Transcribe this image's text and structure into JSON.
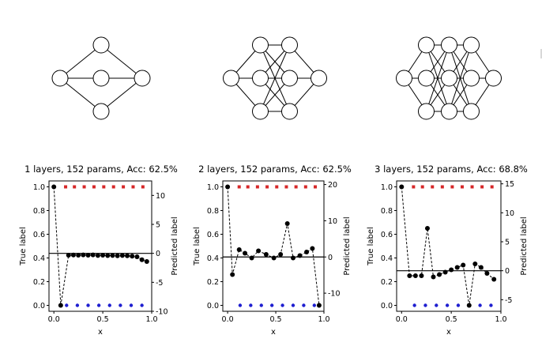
{
  "networks": [
    {
      "layers": [
        1,
        3,
        1
      ]
    },
    {
      "layers": [
        1,
        3,
        3,
        1
      ]
    },
    {
      "layers": [
        1,
        3,
        3,
        3,
        1
      ]
    }
  ],
  "chart_data": [
    {
      "type": "scatter",
      "title": "1 layers, 152 params, Acc: 62.5%",
      "xlabel": "x",
      "ylabel_left": "True label",
      "ylabel_right": "Predicted label",
      "xlim": [
        -0.05,
        1.0
      ],
      "ylim_left": [
        -0.05,
        1.05
      ],
      "ylim_right": [
        -10,
        12.5
      ],
      "xticks": [
        "0.0",
        "0.5",
        "1.0"
      ],
      "yticks_left": [
        "0.0",
        "0.2",
        "0.4",
        "0.6",
        "0.8",
        "1.0"
      ],
      "yticks_right": [
        "-10",
        "-5",
        "0",
        "5",
        "10"
      ],
      "grid": false,
      "series": [
        {
          "axis": "left",
          "style": "red-squares",
          "color": "#d62728",
          "x": [
            0.12,
            0.21,
            0.31,
            0.41,
            0.51,
            0.61,
            0.71,
            0.81,
            0.91
          ],
          "y": [
            1,
            1,
            1,
            1,
            1,
            1,
            1,
            1,
            1
          ]
        },
        {
          "axis": "left",
          "style": "blue-dots",
          "color": "#1f1fd0",
          "x": [
            0.13,
            0.24,
            0.35,
            0.46,
            0.57,
            0.68,
            0.79,
            0.9
          ],
          "y": [
            0,
            0,
            0,
            0,
            0,
            0,
            0,
            0
          ]
        },
        {
          "axis": "left",
          "style": "black-dashed",
          "color": "#000000",
          "x": [
            0.0,
            0.07,
            0.15,
            0.2,
            0.25,
            0.3,
            0.35,
            0.4,
            0.45,
            0.5,
            0.55,
            0.6,
            0.65,
            0.7,
            0.75,
            0.8,
            0.85,
            0.9,
            0.95
          ],
          "y": [
            1.0,
            0.0,
            0.423,
            0.425,
            0.423,
            0.426,
            0.423,
            0.426,
            0.421,
            0.423,
            0.42,
            0.421,
            0.418,
            0.421,
            0.418,
            0.415,
            0.41,
            0.385,
            0.37
          ]
        }
      ],
      "hline": {
        "axis": "right",
        "y": 0
      }
    },
    {
      "type": "scatter",
      "title": "2 layers, 152 params, Acc: 62.5%",
      "xlabel": "x",
      "ylabel_left": "True label",
      "ylabel_right": "Predicted label",
      "xlim": [
        -0.05,
        1.0
      ],
      "ylim_left": [
        -0.05,
        1.05
      ],
      "ylim_right": [
        -15,
        21
      ],
      "xticks": [
        "0.0",
        "0.5",
        "1.0"
      ],
      "yticks_left": [
        "0.0",
        "0.2",
        "0.4",
        "0.6",
        "0.8",
        "1.0"
      ],
      "yticks_right": [
        "-10",
        "0",
        "10",
        "20"
      ],
      "grid": false,
      "series": [
        {
          "axis": "left",
          "style": "red-squares",
          "color": "#d62728",
          "x": [
            0.12,
            0.21,
            0.31,
            0.41,
            0.51,
            0.61,
            0.71,
            0.81,
            0.91
          ],
          "y": [
            1,
            1,
            1,
            1,
            1,
            1,
            1,
            1,
            1
          ]
        },
        {
          "axis": "left",
          "style": "blue-dots",
          "color": "#1f1fd0",
          "x": [
            0.13,
            0.24,
            0.35,
            0.46,
            0.57,
            0.68,
            0.79,
            0.9
          ],
          "y": [
            0,
            0,
            0,
            0,
            0,
            0,
            0,
            0
          ]
        },
        {
          "axis": "left",
          "style": "black-dashed",
          "color": "#000000",
          "x": [
            0.0,
            0.05,
            0.12,
            0.18,
            0.25,
            0.32,
            0.4,
            0.48,
            0.55,
            0.62,
            0.68,
            0.75,
            0.82,
            0.88,
            0.95
          ],
          "y": [
            1.0,
            0.26,
            0.47,
            0.44,
            0.4,
            0.46,
            0.43,
            0.4,
            0.43,
            0.69,
            0.4,
            0.42,
            0.45,
            0.48,
            0.0
          ]
        }
      ],
      "hline": {
        "axis": "right",
        "y": 0
      }
    },
    {
      "type": "scatter",
      "title": "3 layers, 152 params, Acc: 68.8%",
      "xlabel": "x",
      "ylabel_left": "True label",
      "ylabel_right": "Predicted label",
      "xlim": [
        -0.05,
        1.0
      ],
      "ylim_left": [
        -0.05,
        1.05
      ],
      "ylim_right": [
        -7,
        15.5
      ],
      "xticks": [
        "0.0",
        "0.5",
        "1.0"
      ],
      "yticks_left": [
        "0.0",
        "0.2",
        "0.4",
        "0.6",
        "0.8",
        "1.0"
      ],
      "yticks_right": [
        "-5",
        "0",
        "5",
        "10",
        "15"
      ],
      "grid": false,
      "series": [
        {
          "axis": "left",
          "style": "red-squares",
          "color": "#d62728",
          "x": [
            0.12,
            0.21,
            0.31,
            0.41,
            0.51,
            0.61,
            0.71,
            0.81,
            0.91
          ],
          "y": [
            1,
            1,
            1,
            1,
            1,
            1,
            1,
            1,
            1
          ]
        },
        {
          "axis": "left",
          "style": "blue-dots",
          "color": "#1f1fd0",
          "x": [
            0.13,
            0.24,
            0.35,
            0.46,
            0.57,
            0.68,
            0.79,
            0.9
          ],
          "y": [
            0,
            0,
            0,
            0,
            0,
            0,
            0,
            0
          ]
        },
        {
          "axis": "left",
          "style": "black-dashed",
          "color": "#000000",
          "x": [
            0.0,
            0.08,
            0.14,
            0.2,
            0.26,
            0.32,
            0.38,
            0.44,
            0.5,
            0.56,
            0.62,
            0.68,
            0.74,
            0.8,
            0.86,
            0.93
          ],
          "y": [
            1.0,
            0.25,
            0.25,
            0.25,
            0.65,
            0.24,
            0.26,
            0.28,
            0.3,
            0.32,
            0.34,
            0.0,
            0.35,
            0.32,
            0.27,
            0.22
          ]
        }
      ],
      "hline": {
        "axis": "right",
        "y": 0
      }
    }
  ]
}
